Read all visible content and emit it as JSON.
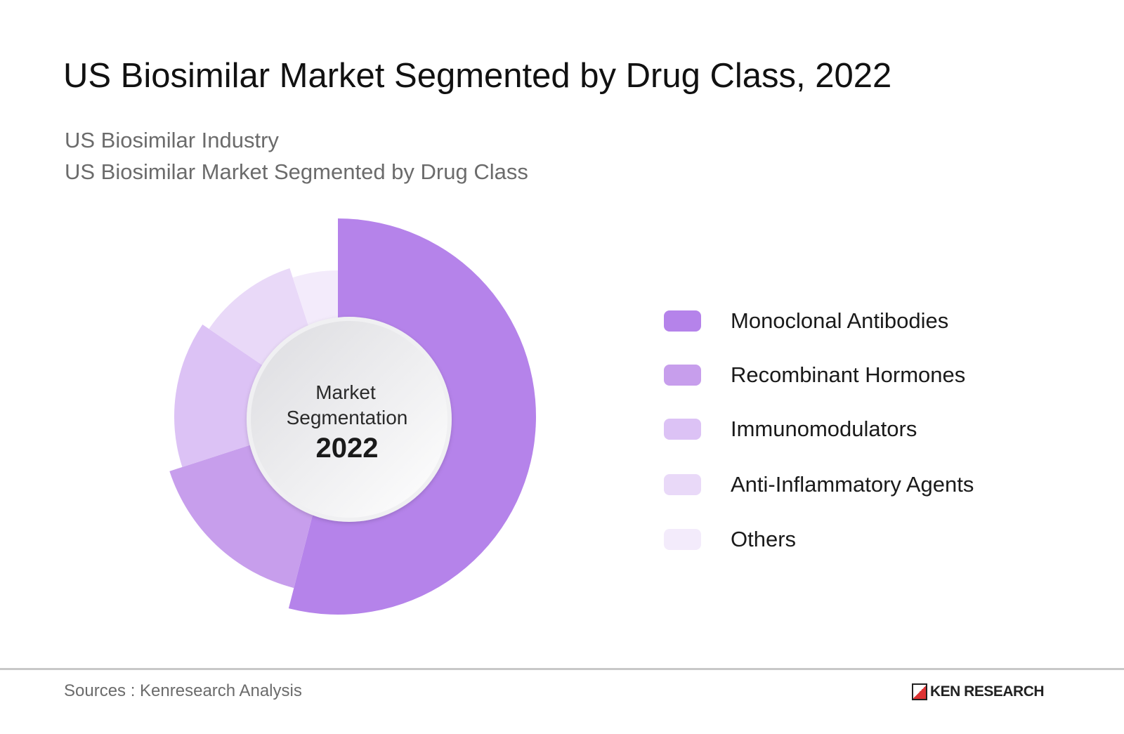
{
  "header": {
    "title": "US Biosimilar Market Segmented by Drug Class, 2022",
    "subtitle_1": "US Biosimilar Industry",
    "subtitle_2": "US Biosimilar Market Segmented by Drug Class"
  },
  "chart_data": {
    "type": "pie",
    "variant": "donut with varying slice radius",
    "center_label": {
      "line1": "Market",
      "line2": "Segmentation",
      "year": "2022"
    },
    "legend_position": "right",
    "categories": [
      "Monoclonal Antibodies",
      "Recombinant Hormones",
      "Immunomodulators",
      "Anti-Inflammatory Agents",
      "Others"
    ],
    "values": [
      54,
      16,
      14.5,
      10.5,
      5
    ],
    "unit": "%",
    "colors": [
      "#b583ea",
      "#c79eec",
      "#dcc2f5",
      "#e9d9f8",
      "#f3ebfb"
    ]
  },
  "footer": {
    "source": "Sources : Kenresearch Analysis",
    "logo_text": "KEN RESEARCH"
  }
}
